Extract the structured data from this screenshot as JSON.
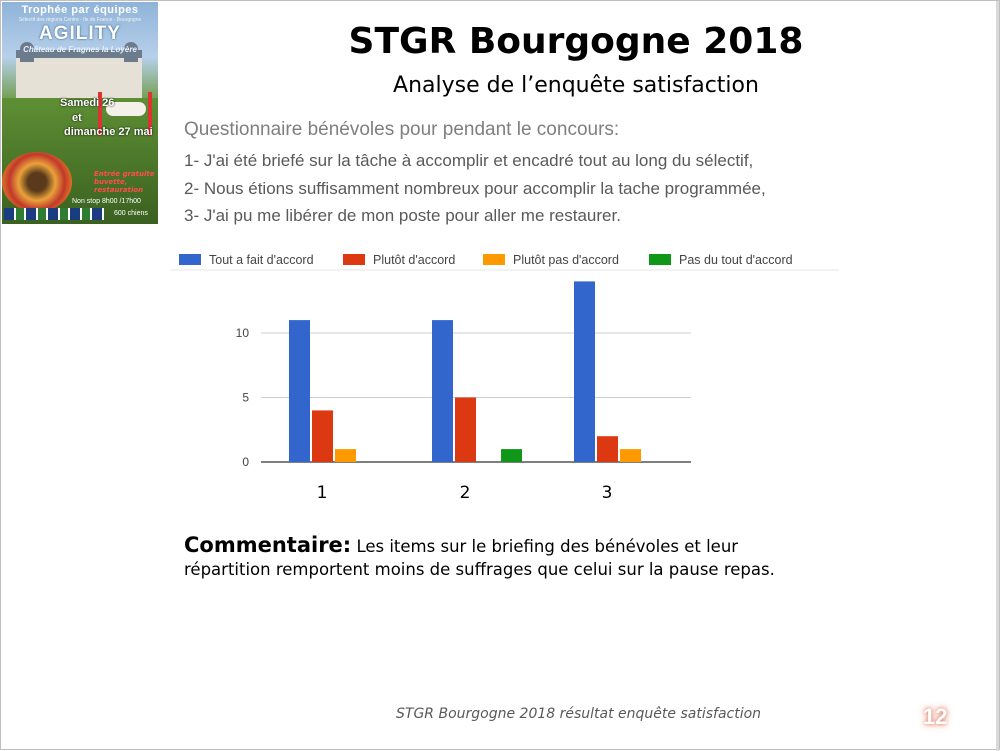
{
  "poster": {
    "line1": "Trophée par équipes",
    "line2": "Sélectif des régions Centre - Ile de France - Bourgogne",
    "line3": "AGILITY",
    "line4": "Château de Fragnes la Loyère",
    "date1": "Samedi 26",
    "date2": "et",
    "date3": "dimanche 27 mai",
    "entry": "Entrée gratuite buvette, restauration",
    "nonstop": "Non stop 8h00 /17h00",
    "chiens": "600 chiens"
  },
  "header": {
    "title": "STGR Bourgogne 2018",
    "subtitle": "Analyse de l’enquête satisfaction"
  },
  "questionnaire": {
    "heading": "Questionnaire bénévoles pour pendant le concours:",
    "items": [
      "1- J'ai été briefé sur la tâche à accomplir et encadré tout au long du sélectif,",
      "2- Nous étions suffisamment nombreux pour accomplir la tache programmée,",
      "3- J'ai pu me libérer de mon poste pour aller me restaurer."
    ]
  },
  "chart_data": {
    "type": "bar",
    "categories": [
      "1",
      "2",
      "3"
    ],
    "series": [
      {
        "name": "Tout a fait d'accord",
        "color": "#3366cc",
        "values": [
          11,
          11,
          14
        ]
      },
      {
        "name": "Plutôt d'accord",
        "color": "#dc3912",
        "values": [
          4,
          5,
          2
        ]
      },
      {
        "name": "Plutôt pas d'accord",
        "color": "#ff9900",
        "values": [
          1,
          0,
          1
        ]
      },
      {
        "name": "Pas du tout d'accord",
        "color": "#109618",
        "values": [
          0,
          1,
          0
        ]
      }
    ],
    "yticks": [
      0,
      5,
      10
    ],
    "ylim": [
      0,
      14
    ],
    "legend": "top",
    "grid": true
  },
  "comment": {
    "label": "Commentaire:",
    "text": "Les items sur le briefing des bénévoles et leur répartition remportent moins de suffrages que celui sur la pause repas."
  },
  "footer": {
    "text": "STGR Bourgogne 2018 résultat enquête satisfaction",
    "page": "12"
  }
}
